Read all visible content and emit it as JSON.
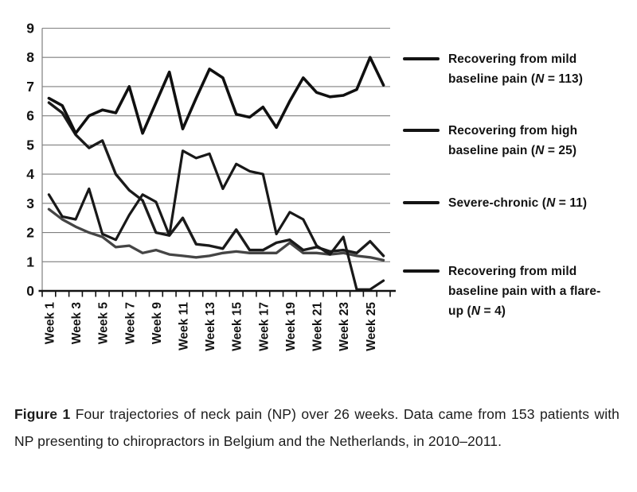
{
  "figure": {
    "caption": {
      "label": "Figure 1",
      "text": "Four trajectories of neck pain (NP) over 26 weeks. Data came from 153 patients with NP presenting to chiropractors in Belgium and the Netherlands, in 2010–2011."
    }
  },
  "legend": {
    "line_color": "#141414",
    "format": {
      "open": "(",
      "var": "N",
      "sep": " = ",
      "close": ")"
    },
    "entries": [
      {
        "label": "Recovering from mild baseline pain",
        "n_value": "113",
        "series_key": "mild-baseline"
      },
      {
        "label": "Recovering from high baseline pain",
        "n_value": "25",
        "series_key": "high-baseline"
      },
      {
        "label": "Severe-chronic",
        "n_value": "11",
        "series_key": "severe-chronic"
      },
      {
        "label": "Recovering from mild baseline pain with a flare-up",
        "n_value": "4",
        "series_key": "flare-up"
      }
    ]
  },
  "chart_data": {
    "type": "line",
    "title": "",
    "xlabel": "",
    "ylabel": "",
    "weeks": [
      1,
      2,
      3,
      4,
      5,
      6,
      7,
      8,
      9,
      10,
      11,
      12,
      13,
      14,
      15,
      16,
      17,
      18,
      19,
      20,
      21,
      22,
      23,
      24,
      25,
      26
    ],
    "x_tick_labels": [
      "Week 1",
      "Week 3",
      "Week 5",
      "Week 7",
      "Week 9",
      "Week 11",
      "Week 13",
      "Week 15",
      "Week 17",
      "Week 19",
      "Week 21",
      "Week 23",
      "Week 25"
    ],
    "x_label_weeks": [
      1,
      3,
      5,
      7,
      9,
      11,
      13,
      15,
      17,
      19,
      21,
      23,
      25
    ],
    "ylim": [
      0,
      9
    ],
    "yticks": [
      0,
      1,
      2,
      3,
      4,
      5,
      6,
      7,
      8,
      9
    ],
    "grid": "horizontal",
    "grid_color": "#7f7f7f",
    "axis_color": "#111111",
    "legend_position": "right",
    "series": [
      {
        "name": "Recovering from mild baseline pain (N = 113)",
        "key": "mild-baseline",
        "color": "#454545",
        "width": 3.3,
        "values": [
          2.8,
          2.45,
          2.2,
          2.0,
          1.85,
          1.5,
          1.55,
          1.3,
          1.4,
          1.25,
          1.2,
          1.15,
          1.2,
          1.3,
          1.35,
          1.3,
          1.3,
          1.3,
          1.65,
          1.3,
          1.3,
          1.25,
          1.3,
          1.2,
          1.15,
          1.05
        ]
      },
      {
        "name": "Recovering from high baseline pain (N = 25)",
        "key": "high-baseline",
        "color": "#1b1b1b",
        "width": 3.4,
        "values": [
          6.45,
          6.1,
          5.35,
          4.9,
          5.15,
          4.0,
          3.45,
          3.1,
          2.0,
          1.9,
          2.5,
          1.6,
          1.55,
          1.45,
          2.1,
          1.4,
          1.4,
          1.65,
          1.75,
          1.4,
          1.5,
          1.35,
          1.4,
          1.3,
          1.7,
          1.2
        ]
      },
      {
        "name": "Severe-chronic (N = 11)",
        "key": "severe-chronic",
        "color": "#101010",
        "width": 3.6,
        "values": [
          6.6,
          6.35,
          5.4,
          6.0,
          6.2,
          6.1,
          7.0,
          5.4,
          6.45,
          7.5,
          5.55,
          6.6,
          7.6,
          7.3,
          6.05,
          5.95,
          6.3,
          5.6,
          6.5,
          7.3,
          6.8,
          6.65,
          6.7,
          6.9,
          8.0,
          7.05
        ]
      },
      {
        "name": "Recovering from mild baseline pain with a flare-up (N = 4)",
        "key": "flare-up",
        "color": "#181818",
        "width": 3.2,
        "values": [
          3.3,
          2.55,
          2.45,
          3.5,
          1.95,
          1.75,
          2.6,
          3.3,
          3.05,
          1.9,
          4.8,
          4.55,
          4.7,
          3.5,
          4.35,
          4.1,
          4.0,
          1.95,
          2.7,
          2.45,
          1.55,
          1.25,
          1.85,
          0.05,
          0.05,
          0.35
        ]
      }
    ]
  }
}
